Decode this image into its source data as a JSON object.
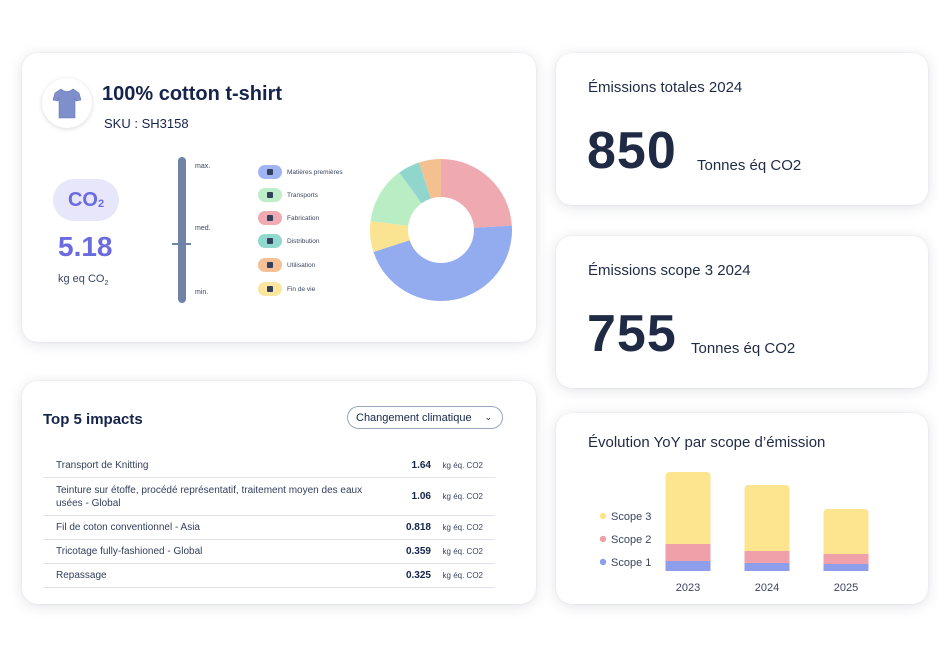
{
  "product": {
    "title": "100% cotton t-shirt",
    "sku": "SKU : SH3158",
    "co2_badge": "CO",
    "co2_badge_sub": "2",
    "co2_value": "5.18",
    "co2_unit": "kg eq CO",
    "co2_unit_sub": "2",
    "scale": {
      "max": "max.",
      "med": "med.",
      "min": "min."
    },
    "legend": [
      {
        "label": "Matières premières",
        "color": "#9fb4f2"
      },
      {
        "label": "Transports",
        "color": "#bdeec8"
      },
      {
        "label": "Fabrication",
        "color": "#f0aab2"
      },
      {
        "label": "Distribution",
        "color": "#93d8cf"
      },
      {
        "label": "Utilisation",
        "color": "#f5c095"
      },
      {
        "label": "Fin de vie",
        "color": "#fbe6a0"
      }
    ]
  },
  "chart_data": [
    {
      "type": "pie",
      "title": "",
      "categories": [
        "Fabrication",
        "Matières premières",
        "Fin de vie",
        "Transports",
        "Distribution",
        "Utilisation"
      ],
      "values": [
        24,
        46,
        7,
        13,
        5,
        5
      ],
      "colors": [
        "#efaab1",
        "#93acef",
        "#fbe491",
        "#b9edc4",
        "#90d6cc",
        "#f4c08f"
      ]
    },
    {
      "type": "bar",
      "title": "Évolution YoY par scope d’émission",
      "categories": [
        "2023",
        "2024",
        "2025"
      ],
      "series": [
        {
          "name": "Scope 1",
          "values": [
            10,
            8,
            7
          ],
          "color": "#8f9eea"
        },
        {
          "name": "Scope 2",
          "values": [
            17,
            12,
            10
          ],
          "color": "#f0a0a8"
        },
        {
          "name": "Scope 3",
          "values": [
            72,
            66,
            45
          ],
          "color": "#fde48e"
        }
      ],
      "legend_position": "left"
    }
  ],
  "impacts": {
    "title": "Top 5 impacts",
    "filter": "Changement climatique",
    "unit": "kg éq. CO2",
    "rows": [
      {
        "name": "Transport de Knitting",
        "value": "1.64"
      },
      {
        "name": "Teinture sur étoffe, procédé représentatif, traitement moyen des eaux usées - Global",
        "value": "1.06"
      },
      {
        "name": "Fil de coton conventionnel - Asia",
        "value": "0.818"
      },
      {
        "name": "Tricotage fully-fashioned - Global",
        "value": "0.359"
      },
      {
        "name": "Repassage",
        "value": "0.325"
      }
    ]
  },
  "total": {
    "title": "Émissions totales 2024",
    "value": "850",
    "unit": "Tonnes éq CO2"
  },
  "scope3": {
    "title": "Émissions scope 3 2024",
    "value": "755",
    "unit": "Tonnes éq CO2"
  },
  "evolution": {
    "title": "Évolution YoY par scope d’émission"
  }
}
